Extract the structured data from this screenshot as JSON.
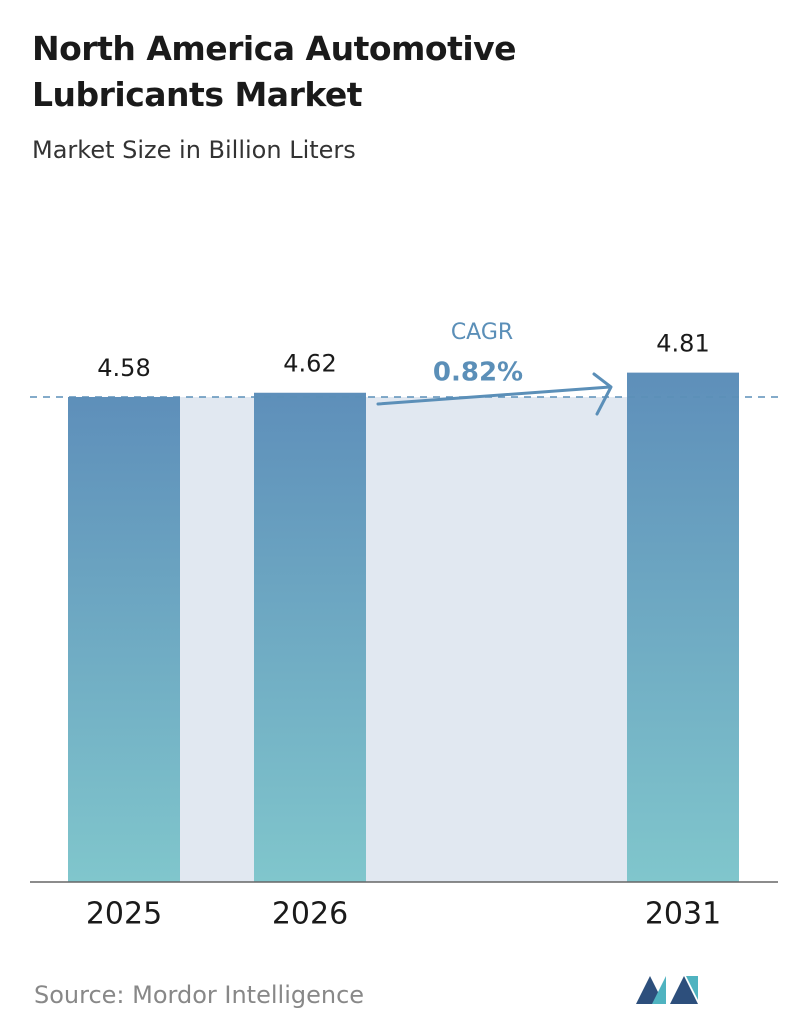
{
  "chart_data": {
    "type": "bar",
    "title": "North America Automotive Lubricants Market",
    "subtitle": "Market Size in Billion Liters",
    "categories": [
      "2025",
      "2026",
      "2031"
    ],
    "values": [
      4.58,
      4.62,
      4.81
    ],
    "color": "#5e91b9",
    "annotation_label": "CAGR",
    "annotation_value": "0.82%",
    "source": "Source: Mordor Intelligence"
  }
}
